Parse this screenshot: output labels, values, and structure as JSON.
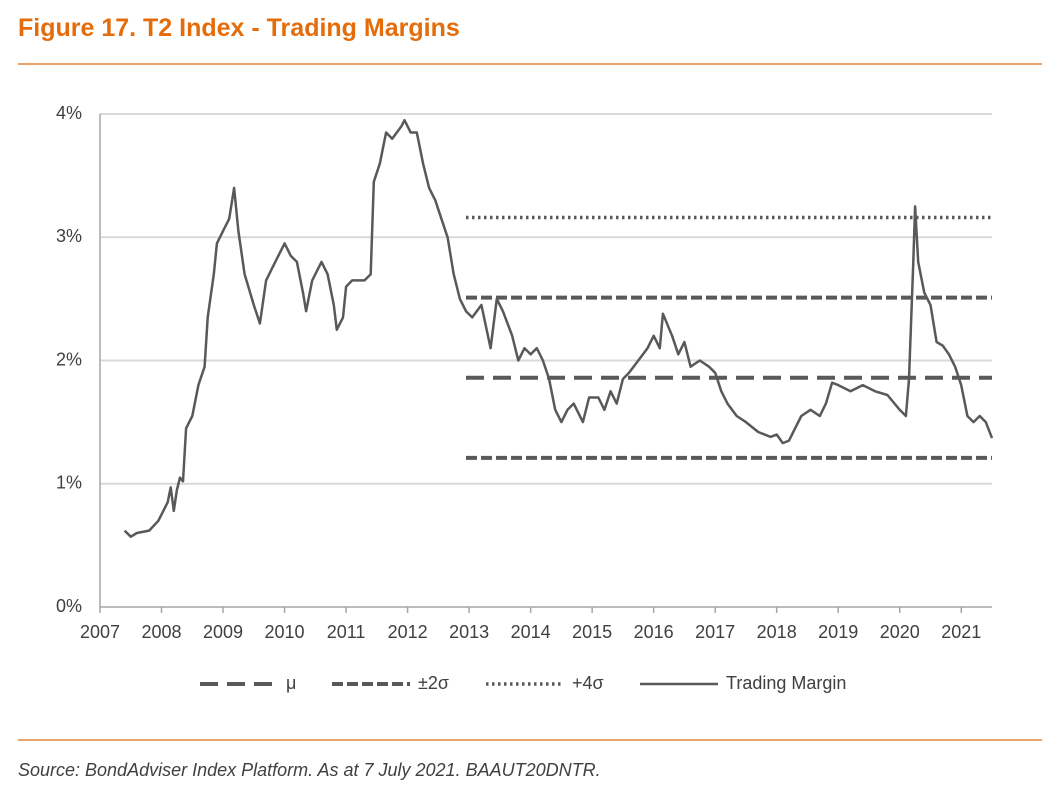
{
  "header": {
    "title": "Figure 17. T2 Index - Trading Margins"
  },
  "chart_data": {
    "type": "line",
    "xlim": [
      2007,
      2021.5
    ],
    "xticks": [
      2007,
      2008,
      2009,
      2010,
      2011,
      2012,
      2013,
      2014,
      2015,
      2016,
      2017,
      2018,
      2019,
      2020,
      2021
    ],
    "ylim": [
      0,
      4
    ],
    "yticks": [
      {
        "value": 0,
        "label": "0%"
      },
      {
        "value": 1,
        "label": "1%"
      },
      {
        "value": 2,
        "label": "2%"
      },
      {
        "value": 3,
        "label": "3%"
      },
      {
        "value": 4,
        "label": "4%"
      }
    ],
    "grid": true,
    "legend": "bottom",
    "series": [
      {
        "name": "μ",
        "color": "#595959",
        "dash": "long-dash",
        "x": [
          2012.95,
          2021.5
        ],
        "values": [
          1.86,
          1.86
        ]
      },
      {
        "name": "±2σ",
        "color": "#595959",
        "dash": "dash",
        "x": [
          2012.95,
          2021.5,
          null,
          2012.95,
          2021.5
        ],
        "values": [
          2.51,
          2.51,
          null,
          1.21,
          1.21
        ]
      },
      {
        "name": "+4σ",
        "color": "#595959",
        "dash": "dot",
        "x": [
          2012.95,
          2021.5
        ],
        "values": [
          3.16,
          3.16
        ]
      },
      {
        "name": "Trading Margin",
        "color": "#595959",
        "dash": "solid",
        "x": [
          2007.4,
          2007.5,
          2007.6,
          2007.8,
          2007.95,
          2008.1,
          2008.15,
          2008.2,
          2008.25,
          2008.3,
          2008.35,
          2008.4,
          2008.5,
          2008.6,
          2008.7,
          2008.75,
          2008.85,
          2008.9,
          2009.0,
          2009.1,
          2009.18,
          2009.25,
          2009.35,
          2009.5,
          2009.6,
          2009.7,
          2009.8,
          2009.9,
          2010.0,
          2010.1,
          2010.2,
          2010.3,
          2010.35,
          2010.45,
          2010.55,
          2010.6,
          2010.7,
          2010.8,
          2010.85,
          2010.95,
          2011.0,
          2011.1,
          2011.3,
          2011.4,
          2011.45,
          2011.55,
          2011.65,
          2011.75,
          2011.9,
          2011.95,
          2012.05,
          2012.15,
          2012.25,
          2012.35,
          2012.45,
          2012.55,
          2012.65,
          2012.75,
          2012.85,
          2012.95,
          2013.05,
          2013.2,
          2013.35,
          2013.45,
          2013.55,
          2013.7,
          2013.8,
          2013.9,
          2014.0,
          2014.1,
          2014.2,
          2014.3,
          2014.4,
          2014.5,
          2014.6,
          2014.7,
          2014.85,
          2014.95,
          2015.1,
          2015.2,
          2015.3,
          2015.4,
          2015.5,
          2015.6,
          2015.75,
          2015.9,
          2016.0,
          2016.1,
          2016.15,
          2016.3,
          2016.4,
          2016.5,
          2016.6,
          2016.75,
          2016.9,
          2017.0,
          2017.1,
          2017.2,
          2017.35,
          2017.5,
          2017.7,
          2017.9,
          2018.0,
          2018.1,
          2018.2,
          2018.3,
          2018.4,
          2018.55,
          2018.7,
          2018.8,
          2018.9,
          2019.0,
          2019.2,
          2019.4,
          2019.6,
          2019.8,
          2020.0,
          2020.1,
          2020.15,
          2020.22,
          2020.25,
          2020.3,
          2020.4,
          2020.5,
          2020.6,
          2020.7,
          2020.8,
          2020.9,
          2021.0,
          2021.1,
          2021.2,
          2021.3,
          2021.4,
          2021.5
        ],
        "values": [
          0.62,
          0.57,
          0.6,
          0.62,
          0.7,
          0.85,
          0.97,
          0.78,
          0.95,
          1.05,
          1.02,
          1.45,
          1.55,
          1.8,
          1.95,
          2.35,
          2.7,
          2.95,
          3.05,
          3.15,
          3.4,
          3.05,
          2.7,
          2.45,
          2.3,
          2.65,
          2.75,
          2.85,
          2.95,
          2.85,
          2.8,
          2.55,
          2.4,
          2.65,
          2.75,
          2.8,
          2.7,
          2.45,
          2.25,
          2.35,
          2.6,
          2.65,
          2.65,
          2.7,
          3.45,
          3.6,
          3.85,
          3.8,
          3.9,
          3.95,
          3.85,
          3.85,
          3.6,
          3.4,
          3.3,
          3.15,
          3.0,
          2.7,
          2.5,
          2.4,
          2.35,
          2.45,
          2.1,
          2.5,
          2.4,
          2.2,
          2.0,
          2.1,
          2.05,
          2.1,
          2.0,
          1.85,
          1.6,
          1.5,
          1.6,
          1.65,
          1.5,
          1.7,
          1.7,
          1.6,
          1.75,
          1.65,
          1.85,
          1.9,
          2.0,
          2.1,
          2.2,
          2.1,
          2.38,
          2.2,
          2.05,
          2.15,
          1.95,
          2.0,
          1.95,
          1.9,
          1.75,
          1.65,
          1.55,
          1.5,
          1.42,
          1.38,
          1.4,
          1.33,
          1.35,
          1.45,
          1.55,
          1.6,
          1.55,
          1.65,
          1.82,
          1.8,
          1.75,
          1.8,
          1.75,
          1.72,
          1.6,
          1.55,
          1.85,
          2.8,
          3.25,
          2.8,
          2.55,
          2.45,
          2.15,
          2.12,
          2.05,
          1.95,
          1.8,
          1.55,
          1.5,
          1.55,
          1.5,
          1.37
        ]
      }
    ]
  },
  "footer": {
    "source": "Source: BondAdviser Index Platform. As at 7 July 2021. BAAUT20DNTR."
  }
}
